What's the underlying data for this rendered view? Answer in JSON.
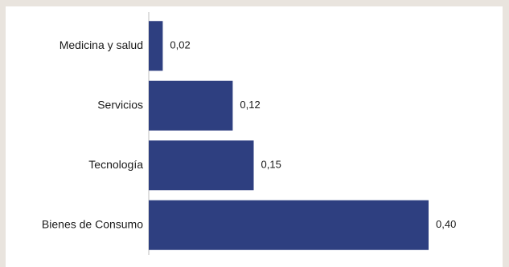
{
  "chart_data": {
    "type": "bar",
    "orientation": "horizontal",
    "categories": [
      "Medicina y salud",
      "Servicios",
      "Tecnología",
      "Bienes de Consumo"
    ],
    "values": [
      0.02,
      0.12,
      0.15,
      0.4
    ],
    "value_labels": [
      "0,02",
      "0,12",
      "0,15",
      "0,40"
    ],
    "xlim": [
      0,
      0.4
    ],
    "bar_color": "#2e3f80",
    "grid": false,
    "title": "",
    "xlabel": "",
    "ylabel": ""
  }
}
